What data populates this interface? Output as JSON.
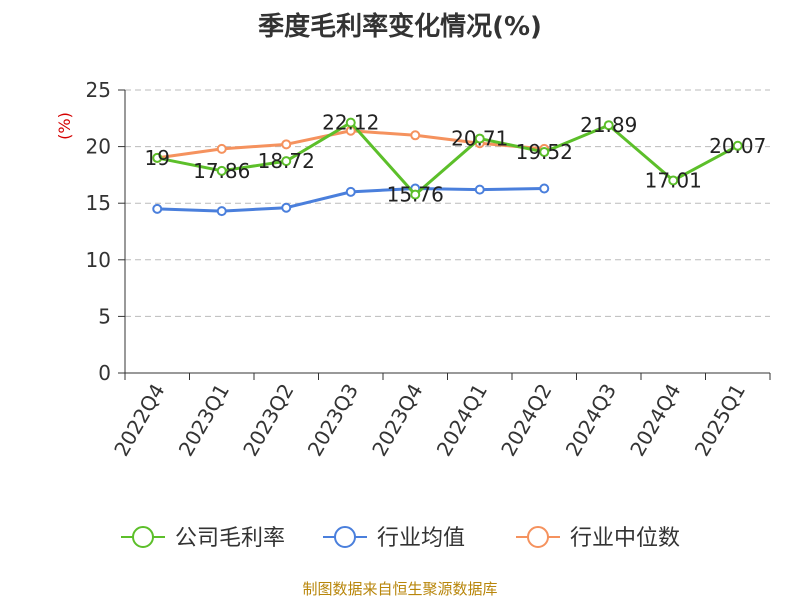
{
  "chart_data": {
    "type": "line",
    "title": "季度毛利率变化情况(%)",
    "ylabel": "(%)",
    "xlabel": "",
    "ylim": [
      0,
      25
    ],
    "yticks": [
      0,
      5,
      10,
      15,
      20,
      25
    ],
    "grid": true,
    "legend_position": "bottom",
    "categories": [
      "2022Q4",
      "2023Q1",
      "2023Q2",
      "2023Q3",
      "2023Q4",
      "2024Q1",
      "2024Q2",
      "2024Q3",
      "2024Q4",
      "2025Q1"
    ],
    "series": [
      {
        "name": "公司毛利率",
        "color": "#5cbf2a",
        "values": [
          19,
          17.86,
          18.72,
          22.12,
          15.76,
          20.71,
          19.52,
          21.89,
          17.01,
          20.07
        ],
        "labels": [
          "19",
          "17.86",
          "18.72",
          "22.12",
          "15.76",
          "20.71",
          "19.52",
          "21.89",
          "17.01",
          "20.07"
        ]
      },
      {
        "name": "行业均值",
        "color": "#4a7fdc",
        "values": [
          14.5,
          14.3,
          14.6,
          16.0,
          16.3,
          16.2,
          16.3,
          null,
          null,
          null
        ]
      },
      {
        "name": "行业中位数",
        "color": "#f5925e",
        "values": [
          19.0,
          19.8,
          20.2,
          21.4,
          21.0,
          20.3,
          19.8,
          null,
          null,
          null
        ]
      }
    ]
  },
  "source_note": "制图数据来自恒生聚源数据库"
}
